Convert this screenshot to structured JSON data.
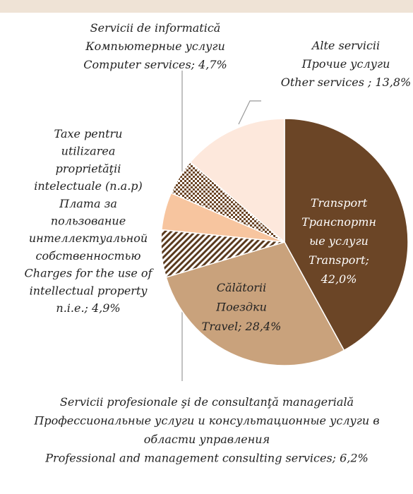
{
  "chart_data": {
    "type": "pie",
    "start_angle": 90,
    "direction": "clockwise",
    "labels": [
      [
        "Transport",
        "Транспортн",
        "ые услуги",
        "Transport;"
      ],
      [
        "Călătorii",
        "Поездки",
        "Travel;"
      ],
      [
        "Servicii profesionale şi de consultanţă managerială",
        "Профессиональные услуги и консультационные услуги в",
        "области управления",
        "Professional and management consulting services;"
      ],
      [
        "Taxe pentru",
        "utilizarea",
        "proprietăţii",
        "intelectuale (n.a.p)",
        "Плата за",
        "пользование",
        "интеллектуальной",
        "собственностью",
        "Charges for the use of",
        "intellectual property",
        "n.i.e.;"
      ],
      [
        "Servicii de informatică",
        "Компьютерные услуги",
        "Computer services;"
      ],
      [
        "Alte servicii",
        "Прочие услуги",
        "Other services ;"
      ]
    ],
    "values": [
      42.0,
      28.4,
      6.2,
      4.9,
      4.7,
      13.8
    ],
    "value_labels": [
      "42,0%",
      "28,4%",
      "6,2%",
      "4,9%",
      "4,7%",
      "13,8%"
    ],
    "colors": [
      "#6b4526",
      "#c9a27c",
      {
        "pattern": "diagonal",
        "color": "#5a3a1e"
      },
      "#f7c59f",
      {
        "pattern": "checker",
        "color": "#6b4526"
      },
      "#fde8dc"
    ]
  }
}
